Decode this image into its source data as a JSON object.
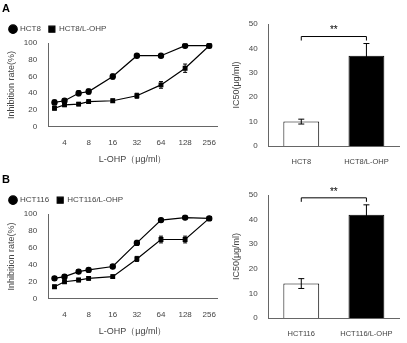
{
  "chart_data": [
    {
      "type": "line",
      "title": "A",
      "x": [
        3,
        4,
        6,
        8,
        16,
        32,
        64,
        128,
        256
      ],
      "series": [
        {
          "name": "HCT8",
          "color": "black",
          "marker": "circle",
          "line_style": "solid",
          "values": [
            29,
            31,
            40,
            42,
            60,
            85,
            85,
            97,
            97
          ],
          "errors": [
            3,
            2,
            3,
            3,
            3,
            2,
            2,
            1,
            1
          ]
        },
        {
          "name": "HCT8/L-OHP",
          "color": "black",
          "marker": "square",
          "line_style": "solid",
          "values": [
            22,
            26,
            27,
            30,
            31,
            37,
            50,
            70,
            97
          ],
          "errors": [
            2,
            2,
            2,
            2,
            2,
            3,
            4,
            5,
            2
          ]
        }
      ],
      "xlabel": "L-OHP（μg/ml）",
      "ylabel": "Inhibition rate(%)",
      "log": "x",
      "xlim": [
        2.5,
        320
      ],
      "xticks": [
        4,
        8,
        16,
        32,
        64,
        128,
        256
      ],
      "ylim": [
        0,
        100
      ],
      "yticks": [
        0,
        20,
        40,
        60,
        80,
        100
      ],
      "legend": "upper left",
      "grid": false
    },
    {
      "type": "bar",
      "categories": [
        "HCT8",
        "HCT8/L-OHP"
      ],
      "values": [
        10,
        37
      ],
      "errors": [
        1,
        5
      ],
      "colors": [
        "white",
        "black"
      ],
      "ylabel": "IC50(μg/ml)",
      "ylim": [
        0,
        50
      ],
      "yticks": [
        0,
        10,
        20,
        30,
        40,
        50
      ],
      "annotations": [
        "**"
      ],
      "grid": false
    },
    {
      "type": "line",
      "title": "B",
      "x": [
        3,
        4,
        6,
        8,
        16,
        32,
        64,
        128,
        256
      ],
      "series": [
        {
          "name": "HCT116",
          "color": "black",
          "marker": "circle",
          "line_style": "solid",
          "values": [
            24,
            26,
            32,
            34,
            38,
            66,
            93,
            96,
            95
          ],
          "errors": [
            2,
            2,
            2,
            2,
            2,
            3,
            2,
            2,
            2
          ]
        },
        {
          "name": "HCT116/L-OHP",
          "color": "black",
          "marker": "square",
          "line_style": "solid",
          "values": [
            14,
            20,
            22,
            24,
            26,
            47,
            70,
            70,
            95
          ],
          "errors": [
            2,
            2,
            2,
            2,
            2,
            3,
            4,
            4,
            2
          ]
        }
      ],
      "xlabel": "L-OHP（μg/ml）",
      "ylabel": "Inhibition rate(%)",
      "log": "x",
      "xlim": [
        2.5,
        320
      ],
      "xticks": [
        4,
        8,
        16,
        32,
        64,
        128,
        256
      ],
      "ylim": [
        0,
        100
      ],
      "yticks": [
        0,
        20,
        40,
        60,
        80,
        100
      ],
      "legend": "upper left",
      "grid": false
    },
    {
      "type": "bar",
      "categories": [
        "HCT116",
        "HCT116/L-OHP"
      ],
      "values": [
        14,
        42
      ],
      "errors": [
        2,
        4
      ],
      "colors": [
        "white",
        "black"
      ],
      "ylabel": "IC50(μg/ml)",
      "ylim": [
        0,
        50
      ],
      "yticks": [
        0,
        10,
        20,
        30,
        40,
        50
      ],
      "annotations": [
        "**"
      ],
      "grid": false
    }
  ]
}
